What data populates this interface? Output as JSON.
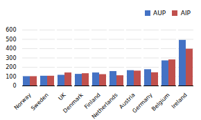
{
  "chart_data": {
    "type": "bar",
    "categories": [
      "Norway",
      "Sweden",
      "UK",
      "Denmark",
      "Finland",
      "Netherlands",
      "Austria",
      "Germany",
      "Belgium",
      "Ireland"
    ],
    "series": [
      {
        "name": "AUP",
        "color": "#4472c4",
        "values": [
          100,
          105,
          115,
          125,
          140,
          155,
          165,
          175,
          270,
          490
        ]
      },
      {
        "name": "AIP",
        "color": "#c0504d",
        "values": [
          100,
          105,
          140,
          132,
          122,
          110,
          160,
          142,
          280,
          395
        ]
      }
    ],
    "ylim": [
      0,
      600
    ],
    "yticks": [
      0,
      100,
      200,
      300,
      400,
      500,
      600
    ],
    "grid": true,
    "legend": "upper right"
  }
}
